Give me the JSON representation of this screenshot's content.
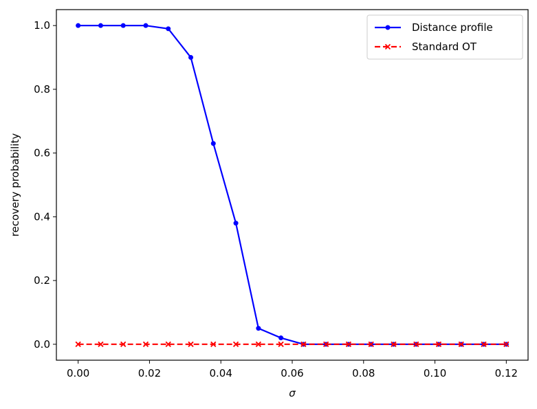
{
  "chart_data": {
    "type": "line",
    "xlabel": "σ",
    "ylabel": "recovery probability",
    "xlim": [
      -0.0061,
      0.1261
    ],
    "ylim": [
      -0.05,
      1.05
    ],
    "xticks": [
      {
        "value": 0.0,
        "label": "0.00"
      },
      {
        "value": 0.02,
        "label": "0.02"
      },
      {
        "value": 0.04,
        "label": "0.04"
      },
      {
        "value": 0.06,
        "label": "0.06"
      },
      {
        "value": 0.08,
        "label": "0.08"
      },
      {
        "value": 0.1,
        "label": "0.10"
      },
      {
        "value": 0.12,
        "label": "0.12"
      }
    ],
    "yticks": [
      {
        "value": 0.0,
        "label": "0.0"
      },
      {
        "value": 0.2,
        "label": "0.2"
      },
      {
        "value": 0.4,
        "label": "0.4"
      },
      {
        "value": 0.6,
        "label": "0.6"
      },
      {
        "value": 0.8,
        "label": "0.8"
      },
      {
        "value": 1.0,
        "label": "1.0"
      }
    ],
    "grid": false,
    "legend": "top-right",
    "x": [
      0.0,
      0.00632,
      0.01263,
      0.01895,
      0.02526,
      0.03158,
      0.03789,
      0.04421,
      0.05053,
      0.05684,
      0.06316,
      0.06947,
      0.07579,
      0.08211,
      0.08842,
      0.09474,
      0.10105,
      0.10737,
      0.11368,
      0.12
    ],
    "series": [
      {
        "name": "Distance profile",
        "color": "#0000ff",
        "line_style": "solid",
        "marker": "circle",
        "values": [
          1.0,
          1.0,
          1.0,
          1.0,
          0.99,
          0.9,
          0.63,
          0.38,
          0.05,
          0.02,
          0.0,
          0.0,
          0.0,
          0.0,
          0.0,
          0.0,
          0.0,
          0.0,
          0.0,
          0.0
        ]
      },
      {
        "name": "Standard OT",
        "color": "#ff0000",
        "line_style": "dashed",
        "marker": "x",
        "values": [
          0.0,
          0.0,
          0.0,
          0.0,
          0.0,
          0.0,
          0.0,
          0.0,
          0.0,
          0.0,
          0.0,
          0.0,
          0.0,
          0.0,
          0.0,
          0.0,
          0.0,
          0.0,
          0.0,
          0.0
        ]
      }
    ]
  }
}
